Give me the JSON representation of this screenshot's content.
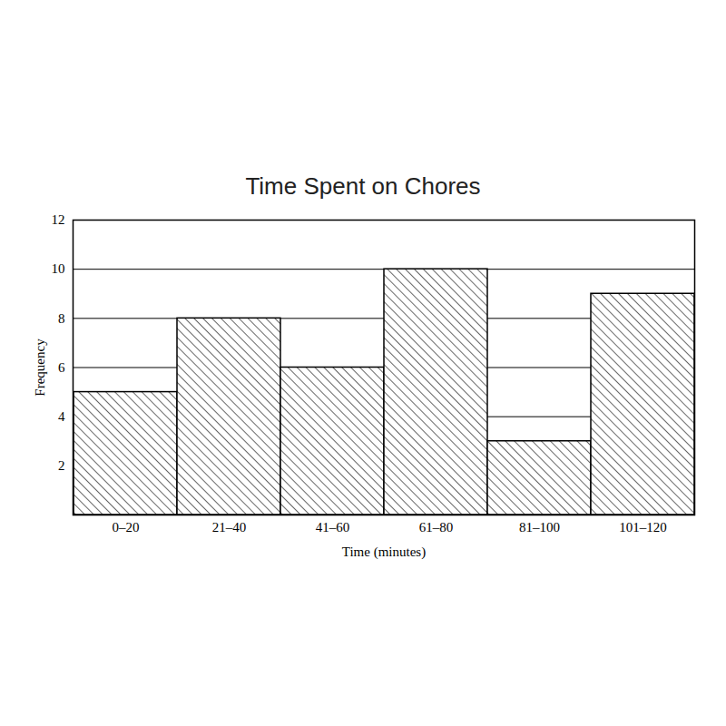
{
  "chart_data": {
    "type": "bar",
    "title": "Time Spent on Chores",
    "xlabel": "Time (minutes)",
    "ylabel": "Frequency",
    "categories": [
      "0–20",
      "21–40",
      "41–60",
      "61–80",
      "81–100",
      "101–120"
    ],
    "values": [
      5,
      8,
      6,
      10,
      3,
      9
    ],
    "color": "#000000",
    "ylim": [
      0,
      12
    ],
    "yticks": [
      2,
      4,
      6,
      8,
      10,
      12
    ],
    "grid": true
  }
}
